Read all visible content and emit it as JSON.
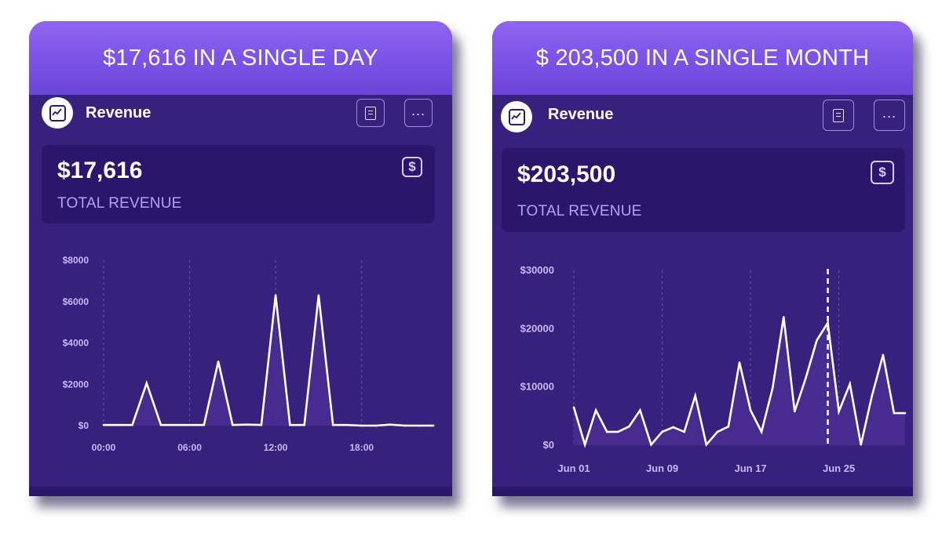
{
  "cards": [
    {
      "banner": "$17,616 IN A SINGLE DAY",
      "title": "Revenue",
      "metric_value": "$17,616",
      "metric_label": "TOTAL REVENUE",
      "icons": {
        "logo": "trend-chart-icon",
        "doc": "document-icon",
        "more": "more-icon",
        "metric": "dollar-icon"
      }
    },
    {
      "banner": "$ 203,500 IN A SINGLE MONTH",
      "title": "Revenue",
      "metric_value": "$203,500",
      "metric_label": "TOTAL REVENUE",
      "icons": {
        "logo": "trend-chart-icon",
        "doc": "document-icon",
        "more": "more-icon",
        "metric": "dollar-icon"
      }
    }
  ],
  "colors": {
    "line": "#ffffff",
    "fill": "#4a2d91",
    "gridline": "#6a55b0",
    "axis_text": "#c7b8f5",
    "marker": "#ffffff"
  },
  "chart_data": [
    {
      "type": "area",
      "title": "",
      "xlabel": "",
      "ylabel": "",
      "x_unit": "hour",
      "xlim": [
        0,
        23
      ],
      "ylim": [
        0,
        8000
      ],
      "grid": "vertical dashed",
      "yticks": [
        0,
        2000,
        4000,
        6000,
        8000
      ],
      "ytick_labels": [
        "$0",
        "$2000",
        "$4000",
        "$6000",
        "$8000"
      ],
      "xticks": [
        0,
        6,
        12,
        18
      ],
      "xtick_labels": [
        "00:00",
        "06:00",
        "12:00",
        "18:00"
      ],
      "series": [
        {
          "x": [
            0,
            1,
            2,
            3,
            4,
            5,
            6,
            7,
            8,
            9,
            10,
            11,
            12,
            13,
            14,
            15,
            16,
            17,
            18,
            19,
            20,
            21,
            22,
            23
          ],
          "y": [
            30,
            30,
            30,
            2050,
            30,
            30,
            30,
            30,
            3100,
            30,
            50,
            30,
            6300,
            30,
            30,
            6300,
            30,
            30,
            0,
            0,
            50,
            0,
            0,
            0
          ]
        }
      ]
    },
    {
      "type": "area",
      "title": "",
      "xlabel": "",
      "ylabel": "",
      "x_unit": "day of June",
      "xlim": [
        1,
        31
      ],
      "ylim": [
        0,
        30000
      ],
      "grid": "vertical dashed",
      "yticks": [
        0,
        10000,
        20000,
        30000
      ],
      "ytick_labels": [
        "$0",
        "$10000",
        "$20000",
        "$30000"
      ],
      "xticks": [
        1,
        9,
        17,
        25
      ],
      "xtick_labels": [
        "Jun 01",
        "Jun 09",
        "Jun 17",
        "Jun 25"
      ],
      "highlight_x": 24,
      "series": [
        {
          "x": [
            1,
            2,
            3,
            4,
            5,
            6,
            7,
            8,
            9,
            10,
            11,
            12,
            13,
            14,
            15,
            16,
            17,
            18,
            19,
            20,
            21,
            22,
            23,
            24,
            25,
            26,
            27,
            28,
            29,
            30,
            31
          ],
          "y": [
            6500,
            100,
            6000,
            2300,
            2300,
            3200,
            6000,
            100,
            2300,
            3100,
            2300,
            8500,
            100,
            2300,
            3200,
            14200,
            6000,
            2300,
            9800,
            22000,
            5800,
            11500,
            18000,
            21000,
            5800,
            10500,
            100,
            8500,
            15500,
            5500,
            5500
          ]
        }
      ]
    }
  ]
}
